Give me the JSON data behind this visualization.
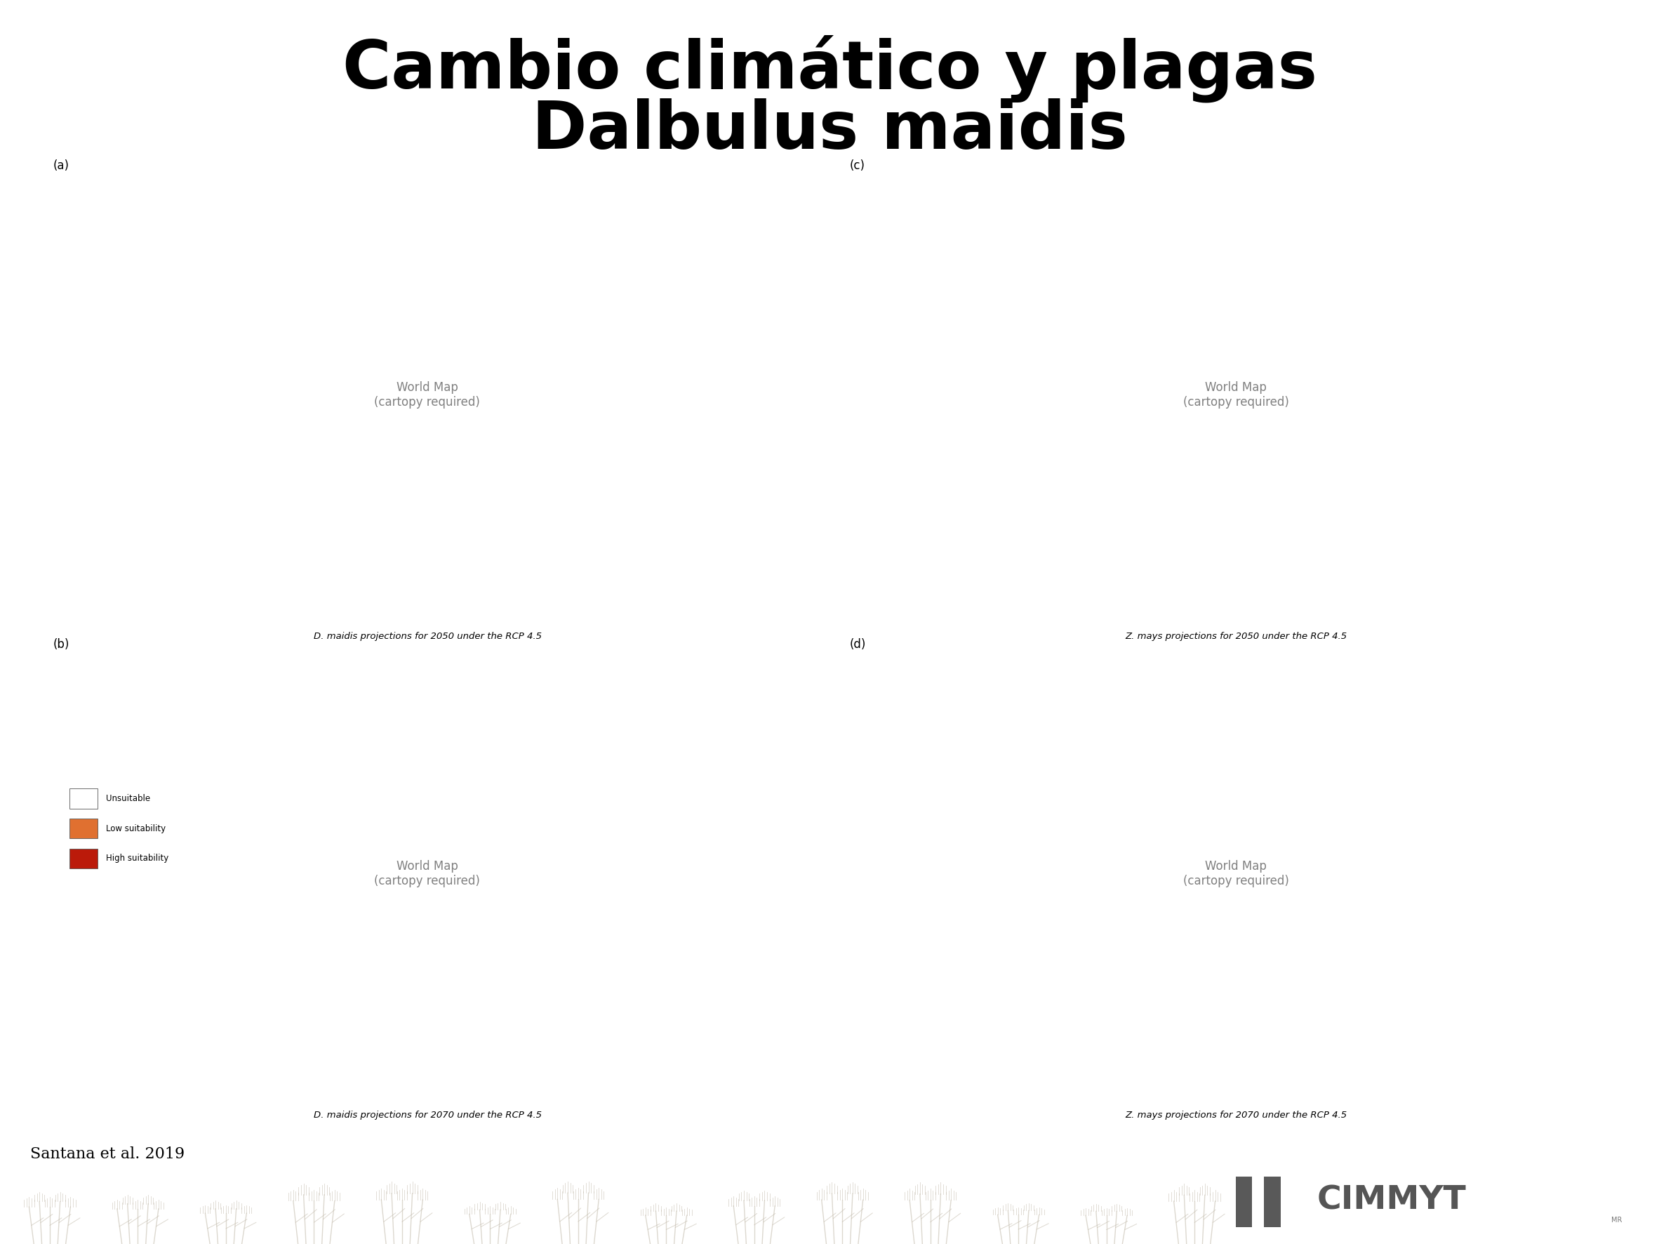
{
  "title_line1": "Cambio climático y plagas",
  "title_line2": "Dalbulus maidis",
  "title_fontsize": 68,
  "title_color": "#000000",
  "background_color": "#ffffff",
  "citation": "Santana et al. 2019",
  "citation_fontsize": 16,
  "map_labels": [
    "(a)",
    "(b)",
    "(c)",
    "(d)"
  ],
  "map_captions": [
    "D. maidis projections for 2050 under the RCP 4.5",
    "D. maidis projections for 2070 under the RCP 4.5",
    "Z. mays projections for 2050 under the RCP 4.5",
    "Z. mays projections for 2070 under the RCP 4.5"
  ],
  "legend_items": [
    "Unsuitable",
    "Low suitability",
    "High suitability"
  ],
  "legend_colors": [
    "#ffffff",
    "#e07030",
    "#bb1a0a"
  ],
  "ocean_color": "#ffffff",
  "land_color": "#f0ece8",
  "low_suit_color": "#e07030",
  "high_suit_color": "#bb1a0a",
  "border_color": "#000000",
  "grid_color": "#999999",
  "map_bg": "#ffffff"
}
